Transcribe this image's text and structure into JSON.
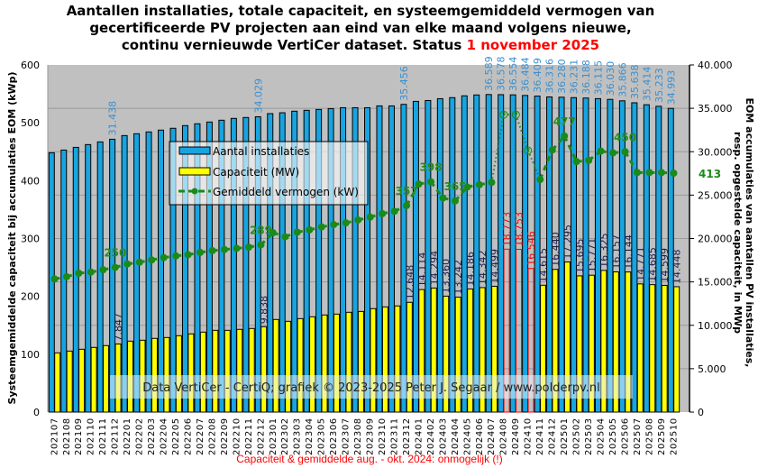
{
  "title": {
    "line1": "Aantallen installaties, totale capaciteit, en systeemgemiddeld vermogen van",
    "line2": "gecertificeerde PV projecten aan eind van elke maand volgens nieuwe,",
    "line3": "continu vernieuwde VertiCer dataset. Status ",
    "status_date": "1 november 2025"
  },
  "colors": {
    "installations": "#18a4e0",
    "capacity": "#ffff00",
    "average": "#1a8a1a",
    "plot_background": "#c0c0c0",
    "impossible": "#ff0000",
    "installation_label": "#3a8fd0",
    "capacity_label": "#1c1c4c"
  },
  "chart_data": {
    "type": "bar+line",
    "title": "Aantallen installaties, totale capaciteit, en systeemgemiddeld vermogen van gecertificeerde PV projecten aan eind van elke maand volgens nieuwe, continu vernieuwde VertiCer dataset. Status 1 november 2025",
    "ylabel_left": "Systeemgemiddelde capaciteit bij accumulaties EOM (kWp)",
    "ylabel_right_line1": "EOM accumulaties van aantallen PV installaties,",
    "ylabel_right_line2": "resp. opgestelde capaciteit, in MWp",
    "ylim_left": [
      0,
      600
    ],
    "yticks_left": [
      "0",
      "100",
      "200",
      "300",
      "400",
      "500",
      "600"
    ],
    "ylim_right": [
      0,
      40000
    ],
    "yticks_right": [
      "0",
      "5.000",
      "10.000",
      "15.000",
      "20.000",
      "25.000",
      "30.000",
      "35.000",
      "40.000"
    ],
    "grid": "horizontal, right-axis 5.000 steps",
    "legend_placement": "upper-left-center",
    "categories": [
      "202107",
      "202108",
      "202109",
      "202110",
      "202111",
      "202112",
      "202201",
      "202202",
      "202203",
      "202204",
      "202205",
      "202206",
      "202207",
      "202208",
      "202209",
      "202210",
      "202211",
      "202212",
      "202301",
      "202302",
      "202303",
      "202304",
      "202305",
      "202306",
      "202307",
      "202308",
      "202309",
      "202310",
      "202311",
      "202312",
      "202401",
      "202402",
      "202403",
      "202404",
      "202405",
      "202406",
      "202407",
      "202408",
      "202409",
      "202410",
      "202411",
      "202412",
      "202501",
      "202502",
      "202503",
      "202504",
      "202505",
      "202506",
      "202507",
      "202508",
      "202509",
      "202510"
    ],
    "series": [
      {
        "name": "Aantal installaties",
        "type": "bar",
        "axis": "right",
        "values": [
          29880,
          30190,
          30500,
          30820,
          31130,
          31438,
          31860,
          32070,
          32280,
          32490,
          32700,
          33010,
          33220,
          33420,
          33630,
          33840,
          33940,
          34029,
          34390,
          34490,
          34670,
          34770,
          34870,
          34970,
          35070,
          35070,
          35070,
          35280,
          35280,
          35456,
          35800,
          35900,
          36110,
          36230,
          36440,
          36540,
          36589,
          36578,
          36554,
          36484,
          36409,
          36316,
          36280,
          36231,
          36188,
          36115,
          36030,
          35866,
          35638,
          35414,
          35233,
          34993
        ],
        "labeled_indices": [
          5,
          17,
          29,
          36,
          37,
          38,
          39,
          40,
          41,
          42,
          43,
          44,
          45,
          46,
          47,
          48,
          49,
          50,
          51
        ],
        "label_texts": [
          "31.438",
          "34.029",
          "35.456",
          "36.589",
          "36.578",
          "36.554",
          "36.484",
          "36.409",
          "36.316",
          "36.280",
          "36.231",
          "36.188",
          "36.115",
          "36.030",
          "35.866",
          "35.638",
          "35.414",
          "35.233",
          "34.993"
        ]
      },
      {
        "name": "Capaciteit (MW)",
        "type": "bar",
        "axis": "right",
        "values": [
          6826,
          7030,
          7240,
          7450,
          7660,
          7847,
          8175,
          8280,
          8490,
          8590,
          8800,
          9010,
          9215,
          9420,
          9420,
          9530,
          9630,
          9838,
          10670,
          10460,
          10770,
          10980,
          11190,
          11290,
          11500,
          11600,
          11920,
          12120,
          12230,
          12648,
          14114,
          14294,
          13360,
          13242,
          14186,
          14342,
          14499,
          18773,
          18753,
          16546,
          14615,
          16440,
          17295,
          15695,
          15771,
          16325,
          16157,
          16144,
          14771,
          14685,
          14599,
          14448
        ],
        "impossible_indices": [
          37,
          38,
          39
        ],
        "labeled_indices": [
          5,
          17,
          29,
          30,
          31,
          32,
          33,
          34,
          35,
          36,
          37,
          38,
          39,
          40,
          41,
          42,
          43,
          44,
          45,
          46,
          47,
          48,
          49,
          50,
          51
        ],
        "label_texts": [
          "7.847",
          "9.838",
          "12.648",
          "14.114",
          "14.294",
          "13.360",
          "13.242",
          "14.186",
          "14.342",
          "14.499",
          "18.773",
          "18.753",
          "16.546",
          "14.615",
          "16.440",
          "17.295",
          "15.695",
          "15.771",
          "16.325",
          "16.157",
          "16.144",
          "14.771",
          "14.685",
          "14.599",
          "14.448"
        ]
      },
      {
        "name": "Gemiddeld vermogen (kW)",
        "type": "line",
        "axis": "left",
        "values": [
          230,
          234,
          240,
          242,
          246,
          250,
          256,
          259,
          263,
          267,
          270,
          272,
          276,
          279,
          281,
          283,
          285,
          289,
          310,
          303,
          311,
          315,
          320,
          324,
          327,
          332,
          337,
          343,
          347,
          357,
          394,
          398,
          370,
          365,
          389,
          393,
          397,
          514,
          514,
          452,
          402,
          453,
          477,
          433,
          435,
          451,
          448,
          450,
          414,
          414,
          414,
          413
        ],
        "uncertain_indices": [
          37,
          38,
          39
        ],
        "uncertain_marker": "?",
        "annotations": [
          {
            "index": 5,
            "text": "250"
          },
          {
            "index": 17,
            "text": "289"
          },
          {
            "index": 29,
            "text": "357"
          },
          {
            "index": 31,
            "text": "398"
          },
          {
            "index": 33,
            "text": "365"
          },
          {
            "index": 42,
            "text": "477"
          },
          {
            "index": 47,
            "text": "450"
          },
          {
            "index": 51,
            "text": "413"
          }
        ]
      }
    ],
    "watermark": "Data VertiCer - CertiQ; grafiek © 2023-2025 Peter J. Segaar / www.polderpv.nl",
    "footnote": "Capaciteit & gemiddelde aug. - okt. 2024: onmogelijk (!)"
  }
}
